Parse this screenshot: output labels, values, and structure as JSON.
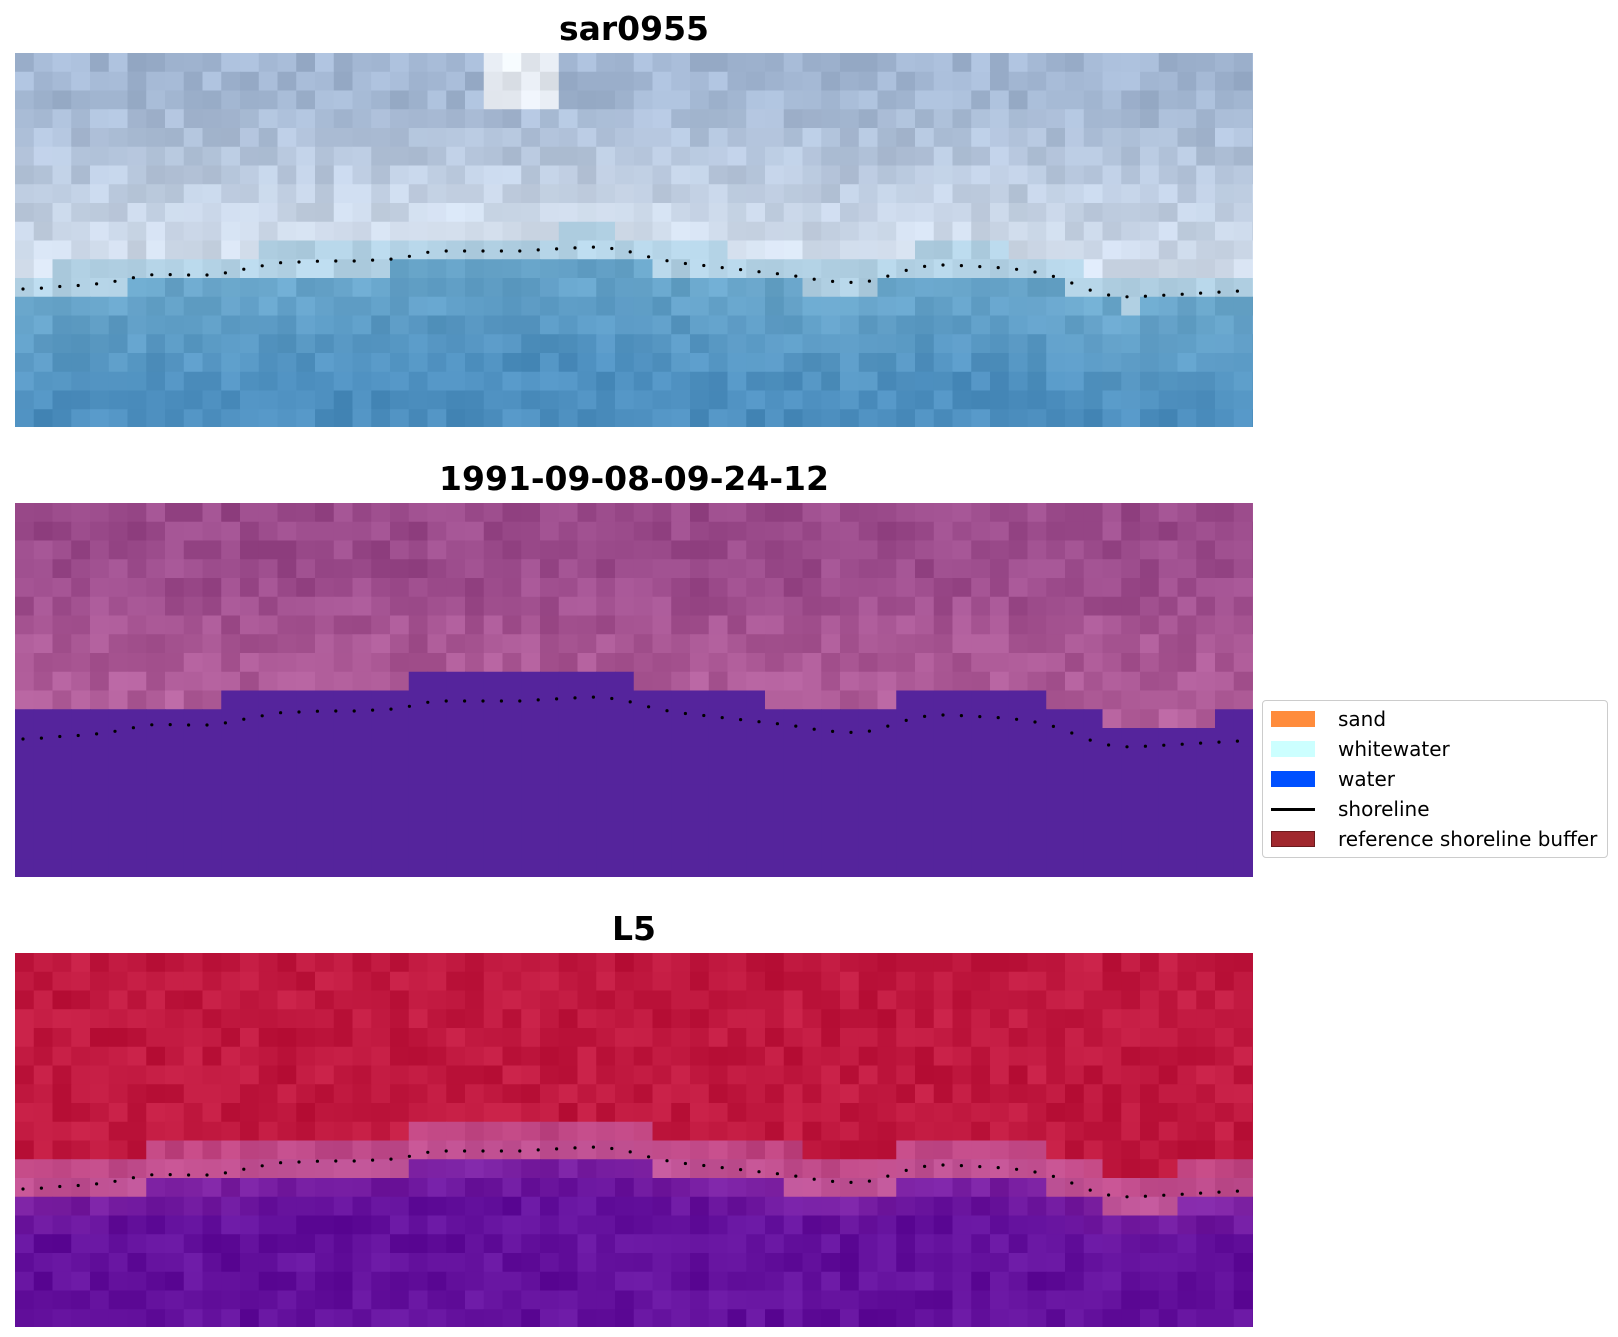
{
  "panels": [
    {
      "title": "sar0955",
      "image": "rgb-composite",
      "colors": {
        "land_top": "#a2b6d2",
        "land_bright": "#dfe8f3",
        "water": "#4d8fbf"
      }
    },
    {
      "title": "1991-09-08-09-24-12",
      "image": "classified-overlay",
      "colors": {
        "land": "#9a4a8a",
        "land_light": "#b25e9a",
        "water": "#55249c"
      }
    },
    {
      "title": "L5",
      "image": "false-color",
      "colors": {
        "land": "#c0183f",
        "transition": "#c0569a",
        "water": "#63109c"
      }
    }
  ],
  "legend": {
    "items": [
      {
        "label": "sand",
        "color": "#ff8c3c",
        "kind": "patch"
      },
      {
        "label": "whitewater",
        "color": "#ccffff",
        "kind": "patch"
      },
      {
        "label": "water",
        "color": "#0050ff",
        "kind": "patch"
      },
      {
        "label": "shoreline",
        "color": "#000000",
        "kind": "line"
      },
      {
        "label": "reference shoreline buffer",
        "color": "#a0282e",
        "kind": "patch"
      }
    ]
  },
  "shoreline": {
    "x": [
      0,
      18,
      36,
      54,
      72,
      90,
      108,
      126,
      144,
      162,
      180,
      198,
      216,
      234,
      252,
      270,
      288,
      306,
      324,
      342,
      360,
      378,
      396,
      414,
      432,
      450,
      468,
      486,
      504,
      522,
      540,
      558,
      576,
      594,
      612,
      630,
      648,
      666,
      684,
      702,
      720,
      738,
      756,
      774,
      792,
      810,
      828,
      846,
      864,
      882,
      900,
      918,
      936,
      954,
      972,
      990,
      1008,
      1026,
      1044,
      1062,
      1080,
      1098,
      1116,
      1134,
      1152,
      1170,
      1188,
      1206,
      1224
    ],
    "y": [
      236,
      236,
      234,
      233,
      232,
      230,
      227,
      223,
      221,
      222,
      222,
      222,
      219,
      215,
      212,
      209,
      209,
      208,
      208,
      208,
      207,
      206,
      203,
      199,
      198,
      198,
      198,
      198,
      198,
      197,
      196,
      195,
      194,
      195,
      198,
      203,
      207,
      210,
      212,
      214,
      216,
      218,
      220,
      222,
      225,
      228,
      229,
      230,
      226,
      220,
      215,
      212,
      212,
      213,
      214,
      215,
      217,
      220,
      225,
      232,
      239,
      243,
      244,
      243,
      242,
      241,
      240,
      239,
      238
    ]
  }
}
